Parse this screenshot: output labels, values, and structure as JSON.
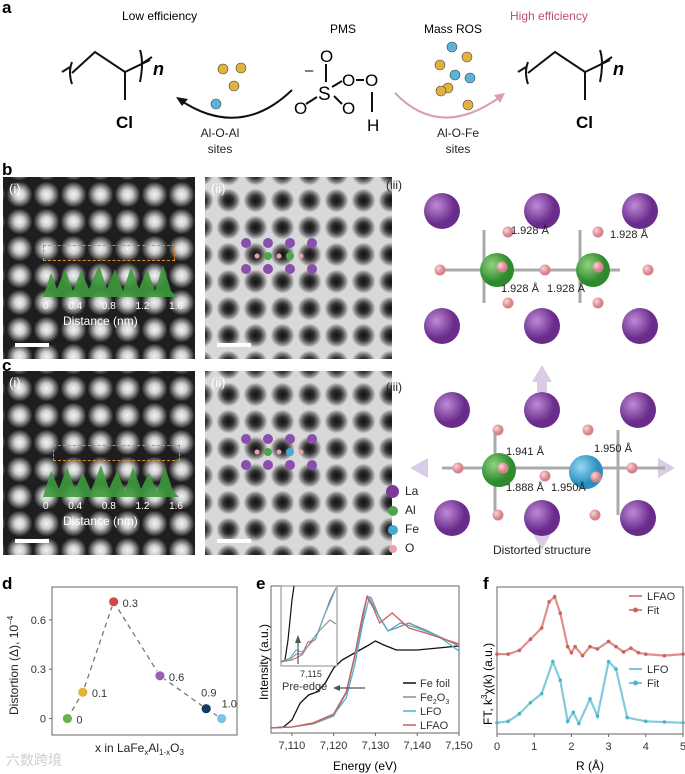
{
  "panel_labels": {
    "a": "a",
    "b": "b",
    "c": "c",
    "d": "d",
    "e": "e",
    "f": "f"
  },
  "panel_a": {
    "left_title": "Low efficiency",
    "right_title": "High efficiency",
    "pms_label": "PMS",
    "ros_label": "Mass ROS",
    "left_site": [
      "Al-O-Al",
      "sites"
    ],
    "right_site": [
      "Al-O-Fe",
      "sites"
    ],
    "polymer_subscript": "n",
    "polymer_substituent": "Cl",
    "pms_atoms": {
      "S": "S",
      "O": "O",
      "H": "H",
      "charge": "–"
    },
    "colors": {
      "high_efficiency": "#c0506a",
      "ros_yellow": "#e3b23c",
      "ros_blue": "#5ab4d9"
    }
  },
  "panel_b": {
    "sub_labels": [
      "(i)",
      "(ii)",
      "(iii)"
    ],
    "profile_xlabel": "Distance (nm)",
    "profile_ticks": [
      "0",
      "0.4",
      "0.8",
      "1.2",
      "1.6"
    ],
    "bond_labels": [
      "1.928 Å",
      "1.928 Å",
      "1.928 Å",
      "1.928 Å"
    ]
  },
  "panel_c": {
    "sub_labels": [
      "(i)",
      "(ii)",
      "(iii)"
    ],
    "profile_xlabel": "Distance (nm)",
    "profile_ticks": [
      "0",
      "0.4",
      "0.8",
      "1.2",
      "1.6"
    ],
    "bond_labels": [
      "1.941 Å",
      "1.950 Å",
      "1.888 Å",
      "1.950Å"
    ],
    "caption": "Distorted structure",
    "legend": [
      {
        "label": "La",
        "color": "#7b3a9a"
      },
      {
        "label": "Al",
        "color": "#4ea64a"
      },
      {
        "label": "Fe",
        "color": "#45a9d6"
      },
      {
        "label": "O",
        "color": "#e7a3aa"
      }
    ]
  },
  "chart_data": [
    {
      "type": "scatter",
      "panel": "d",
      "xlabel": "x in LaFe",
      "xlabel_sub1": "x",
      "xlabel_mid": "Al",
      "xlabel_sub2": "1-x",
      "xlabel_end": "O",
      "xlabel_sub3": "3",
      "ylabel": "Distortion (Δ), 10",
      "ylabel_sup": "−4",
      "yticks": [
        "0",
        "0.3",
        "0.6"
      ],
      "ylim": [
        -0.1,
        0.8
      ],
      "xlim": [
        -0.1,
        1.1
      ],
      "grid": false,
      "points": [
        {
          "x": 0,
          "y": 0,
          "label": "0",
          "color": "#6cb24a"
        },
        {
          "x": 0.1,
          "y": 0.16,
          "label": "0.1",
          "color": "#e3b23c"
        },
        {
          "x": 0.3,
          "y": 0.71,
          "label": "0.3",
          "color": "#d04a48"
        },
        {
          "x": 0.6,
          "y": 0.26,
          "label": "0.6",
          "color": "#9a62b5"
        },
        {
          "x": 0.9,
          "y": 0.06,
          "label": "0.9",
          "color": "#133b63"
        },
        {
          "x": 1.0,
          "y": 0,
          "label": "1.0",
          "color": "#7cc3e8"
        }
      ]
    },
    {
      "type": "line",
      "panel": "e",
      "xlabel": "Energy (eV)",
      "ylabel": "Intensity (a.u.)",
      "xticks": [
        "7,110",
        "7,120",
        "7,130",
        "7,140",
        "7,150"
      ],
      "xtick_values": [
        7110,
        7120,
        7130,
        7140,
        7150
      ],
      "xlim": [
        7105,
        7150
      ],
      "ylim": [
        -0.05,
        1.42
      ],
      "legend_position": "bottom-right",
      "inset": {
        "tick": "7,115",
        "annotation": "Pre-edge"
      },
      "series": [
        {
          "name": "Fe foil",
          "color": "#111111",
          "points": [
            [
              7105,
              0
            ],
            [
              7108,
              0.01
            ],
            [
              7110,
              0.08
            ],
            [
              7112,
              0.25
            ],
            [
              7114,
              0.33
            ],
            [
              7116,
              0.36
            ],
            [
              7118,
              0.45
            ],
            [
              7120,
              0.6
            ],
            [
              7122,
              0.68
            ],
            [
              7125,
              0.75
            ],
            [
              7128,
              0.82
            ],
            [
              7130,
              0.87
            ],
            [
              7132,
              0.83
            ],
            [
              7135,
              0.78
            ],
            [
              7140,
              0.78
            ],
            [
              7145,
              0.8
            ],
            [
              7150,
              0.82
            ]
          ]
        },
        {
          "name": "Fe2O3",
          "color": "#8c8c8c",
          "points": [
            [
              7105,
              0
            ],
            [
              7110,
              0.01
            ],
            [
              7115,
              0.04
            ],
            [
              7120,
              0.12
            ],
            [
              7123,
              0.35
            ],
            [
              7125,
              0.7
            ],
            [
              7127,
              1.1
            ],
            [
              7128,
              1.32
            ],
            [
              7129,
              1.3
            ],
            [
              7131,
              1.1
            ],
            [
              7133,
              0.97
            ],
            [
              7135,
              1.0
            ],
            [
              7138,
              1.05
            ],
            [
              7142,
              0.98
            ],
            [
              7146,
              0.9
            ],
            [
              7150,
              0.82
            ]
          ]
        },
        {
          "name": "LFO",
          "color": "#4fb0cf",
          "points": [
            [
              7105,
              0
            ],
            [
              7110,
              0.01
            ],
            [
              7115,
              0.05
            ],
            [
              7120,
              0.13
            ],
            [
              7123,
              0.3
            ],
            [
              7125,
              0.62
            ],
            [
              7127,
              1.05
            ],
            [
              7128.5,
              1.3
            ],
            [
              7130,
              1.18
            ],
            [
              7133,
              0.97
            ],
            [
              7136,
              1.05
            ],
            [
              7140,
              1.0
            ],
            [
              7145,
              0.92
            ],
            [
              7150,
              0.77
            ]
          ]
        },
        {
          "name": "LFAO",
          "color": "#c9605f",
          "points": [
            [
              7105,
              0
            ],
            [
              7110,
              0.01
            ],
            [
              7115,
              0.05
            ],
            [
              7120,
              0.14
            ],
            [
              7123,
              0.36
            ],
            [
              7125,
              0.72
            ],
            [
              7127,
              1.15
            ],
            [
              7128,
              1.31
            ],
            [
              7129.5,
              1.2
            ],
            [
              7131,
              1.05
            ],
            [
              7134,
              1.15
            ],
            [
              7138,
              1.0
            ],
            [
              7142,
              0.95
            ],
            [
              7150,
              0.84
            ]
          ]
        }
      ]
    },
    {
      "type": "line",
      "panel": "f",
      "xlabel": "R (Å)",
      "ylabel": "FT, k",
      "ylabel_sup": "3",
      "ylabel_end": "χ(k) (a.u.)",
      "xticks": [
        "0",
        "1",
        "2",
        "3",
        "4",
        "5"
      ],
      "xlim": [
        0,
        5
      ],
      "ylim": [
        -0.12,
        1.85
      ],
      "legend_position": "top-right",
      "series": [
        {
          "name": "LFAO",
          "fit_name": "Fit",
          "color": "#d0605a",
          "points": [
            [
              0,
              0.95
            ],
            [
              0.3,
              0.95
            ],
            [
              0.6,
              1.0
            ],
            [
              0.9,
              1.15
            ],
            [
              1.2,
              1.3
            ],
            [
              1.4,
              1.65
            ],
            [
              1.55,
              1.72
            ],
            [
              1.7,
              1.5
            ],
            [
              1.9,
              1.05
            ],
            [
              2.0,
              0.97
            ],
            [
              2.1,
              1.05
            ],
            [
              2.3,
              0.93
            ],
            [
              2.5,
              1.05
            ],
            [
              2.7,
              1.02
            ],
            [
              3.0,
              1.12
            ],
            [
              3.2,
              1.05
            ],
            [
              3.4,
              0.98
            ],
            [
              3.6,
              1.03
            ],
            [
              3.8,
              0.97
            ],
            [
              4.0,
              0.95
            ],
            [
              4.5,
              0.93
            ],
            [
              5,
              0.95
            ]
          ]
        },
        {
          "name": "LFO",
          "fit_name": "Fit",
          "color": "#4fb3cf",
          "points": [
            [
              0,
              0.03
            ],
            [
              0.3,
              0.05
            ],
            [
              0.6,
              0.15
            ],
            [
              0.9,
              0.3
            ],
            [
              1.2,
              0.42
            ],
            [
              1.5,
              0.85
            ],
            [
              1.7,
              0.6
            ],
            [
              1.9,
              0.05
            ],
            [
              2.05,
              0.17
            ],
            [
              2.2,
              0.02
            ],
            [
              2.5,
              0.35
            ],
            [
              2.7,
              0.12
            ],
            [
              3.0,
              0.85
            ],
            [
              3.2,
              0.75
            ],
            [
              3.5,
              0.1
            ],
            [
              4,
              0.05
            ],
            [
              4.5,
              0.04
            ],
            [
              5,
              0.03
            ]
          ]
        }
      ]
    }
  ],
  "watermark": "六数跨境"
}
